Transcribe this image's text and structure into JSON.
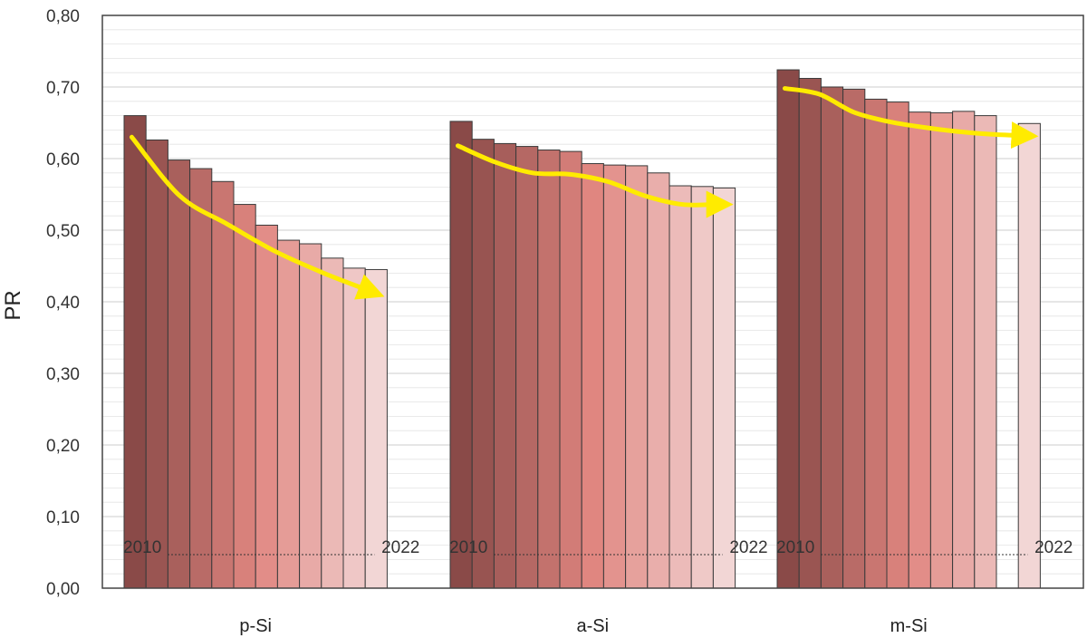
{
  "chart_data": {
    "type": "bar",
    "ylabel": "PR",
    "ylim": [
      0,
      0.8
    ],
    "yticks": [
      "0,00",
      "0,10",
      "0,20",
      "0,30",
      "0,40",
      "0,50",
      "0,60",
      "0,70",
      "0,80"
    ],
    "grid": true,
    "year_start_label": "2010",
    "year_end_label": "2022",
    "groups": [
      {
        "category": "p-Si",
        "values": [
          0.66,
          0.626,
          0.598,
          0.586,
          0.568,
          0.536,
          0.507,
          0.486,
          0.481,
          0.461,
          0.447,
          0.445
        ],
        "trend": [
          0.63,
          0.548,
          0.508,
          0.47,
          0.44,
          0.414
        ]
      },
      {
        "category": "a-Si",
        "values": [
          0.652,
          0.627,
          0.621,
          0.617,
          0.612,
          0.61,
          0.593,
          0.591,
          0.59,
          0.58,
          0.562,
          0.561,
          0.559
        ],
        "trend": [
          0.618,
          0.595,
          0.58,
          0.578,
          0.568,
          0.548,
          0.536,
          0.536
        ]
      },
      {
        "category": "m-Si",
        "values": [
          0.724,
          0.712,
          0.7,
          0.697,
          0.683,
          0.679,
          0.665,
          0.664,
          0.666,
          0.66,
          null,
          0.649
        ],
        "trend": [
          0.698,
          0.69,
          0.665,
          0.652,
          0.644,
          0.638,
          0.634,
          0.632
        ]
      }
    ],
    "colors": {
      "bar_dark": "#8a4a48",
      "bar_mid": "#e08680",
      "bar_light": "#f2d6d5",
      "trend": "#ffeb00",
      "grid": "#e4e4e4",
      "frame": "#444444"
    }
  }
}
